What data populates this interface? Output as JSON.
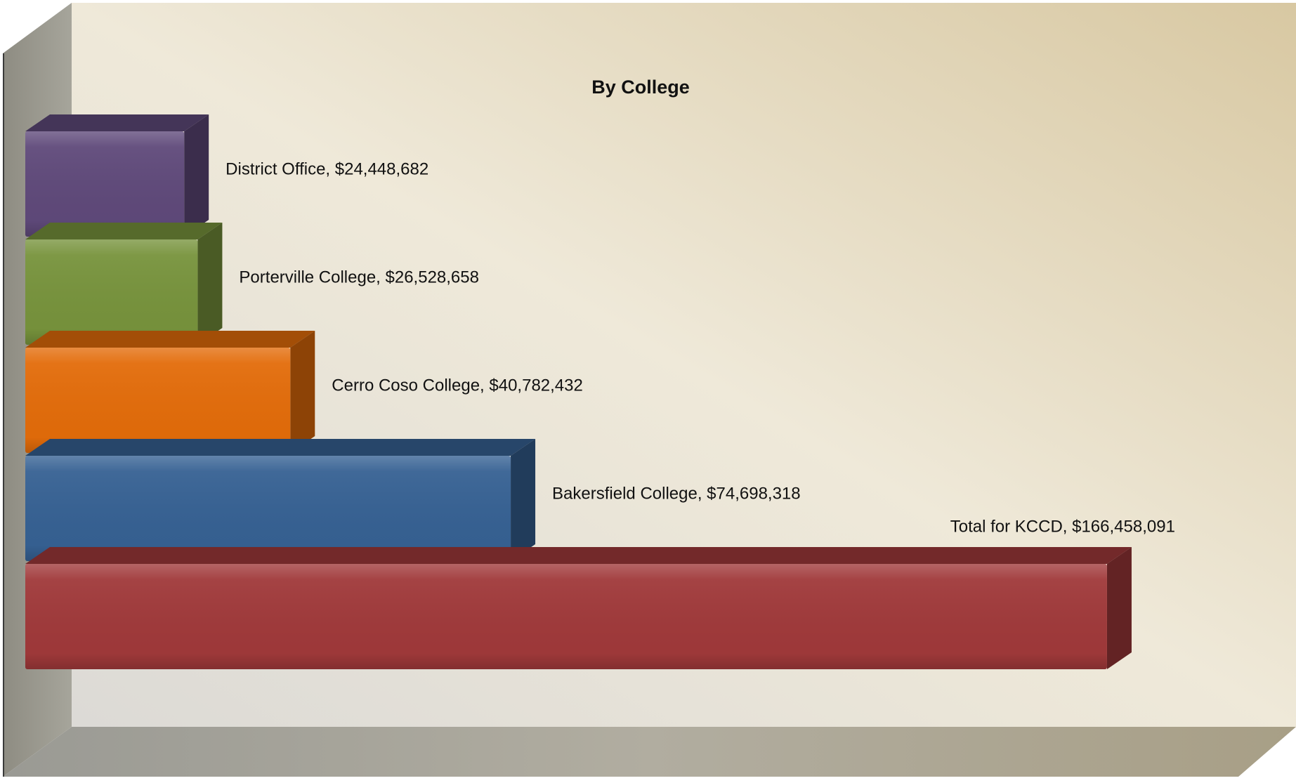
{
  "chart_data": {
    "type": "bar",
    "orientation": "horizontal",
    "style": "3d",
    "title": "By College",
    "xlabel": "",
    "ylabel": "",
    "grid": false,
    "legend": "none",
    "xlim": [
      0,
      195000000
    ],
    "categories": [
      "Total for KCCD",
      "Bakersfield College",
      "Cerro Coso College",
      "Porterville College",
      "District Office"
    ],
    "values": [
      166458091,
      74698318,
      40782432,
      26528658,
      24448682
    ],
    "data_labels": [
      "Total for KCCD,  $166,458,091",
      "Bakersfield College,  $74,698,318",
      "Cerro Coso College,  $40,782,432",
      "Porterville College,  $26,528,658",
      "District Office,  $24,448,682"
    ],
    "colors": [
      "#A0393A",
      "#366193",
      "#E36C0A",
      "#77933C",
      "#5F497A"
    ]
  }
}
